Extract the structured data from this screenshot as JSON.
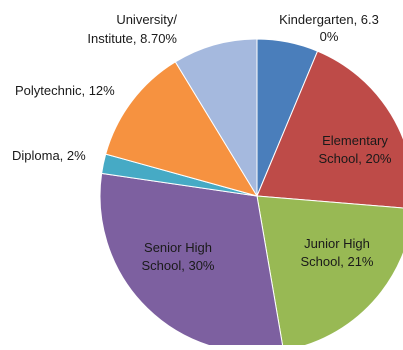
{
  "chart_data": {
    "type": "pie",
    "title": "",
    "slices": [
      {
        "name": "Kindergarten",
        "value": 6.3,
        "label_lines": [
          "Kindergarten, 6.3",
          "0%"
        ],
        "color": "#4a7ebb"
      },
      {
        "name": "Elementary School",
        "value": 20,
        "label_lines": [
          "Elementary",
          "School, 20%"
        ],
        "color": "#be4b48"
      },
      {
        "name": "Junior High School",
        "value": 21,
        "label_lines": [
          "Junior High",
          "School, 21%"
        ],
        "color": "#98b954"
      },
      {
        "name": "Senior High School",
        "value": 30,
        "label_lines": [
          "Senior High",
          "School, 30%"
        ],
        "color": "#7d60a0"
      },
      {
        "name": "Diploma",
        "value": 2,
        "label_lines": [
          "Diploma, 2%"
        ],
        "color": "#46aac5"
      },
      {
        "name": "Polytechnic",
        "value": 12,
        "label_lines": [
          "Polytechnic, 12%"
        ],
        "color": "#f69240"
      },
      {
        "name": "University/Institute",
        "value": 8.7,
        "label_lines": [
          "University/",
          "Institute, 8.70%"
        ],
        "color": "#a5b9de"
      }
    ],
    "legend": "none"
  }
}
